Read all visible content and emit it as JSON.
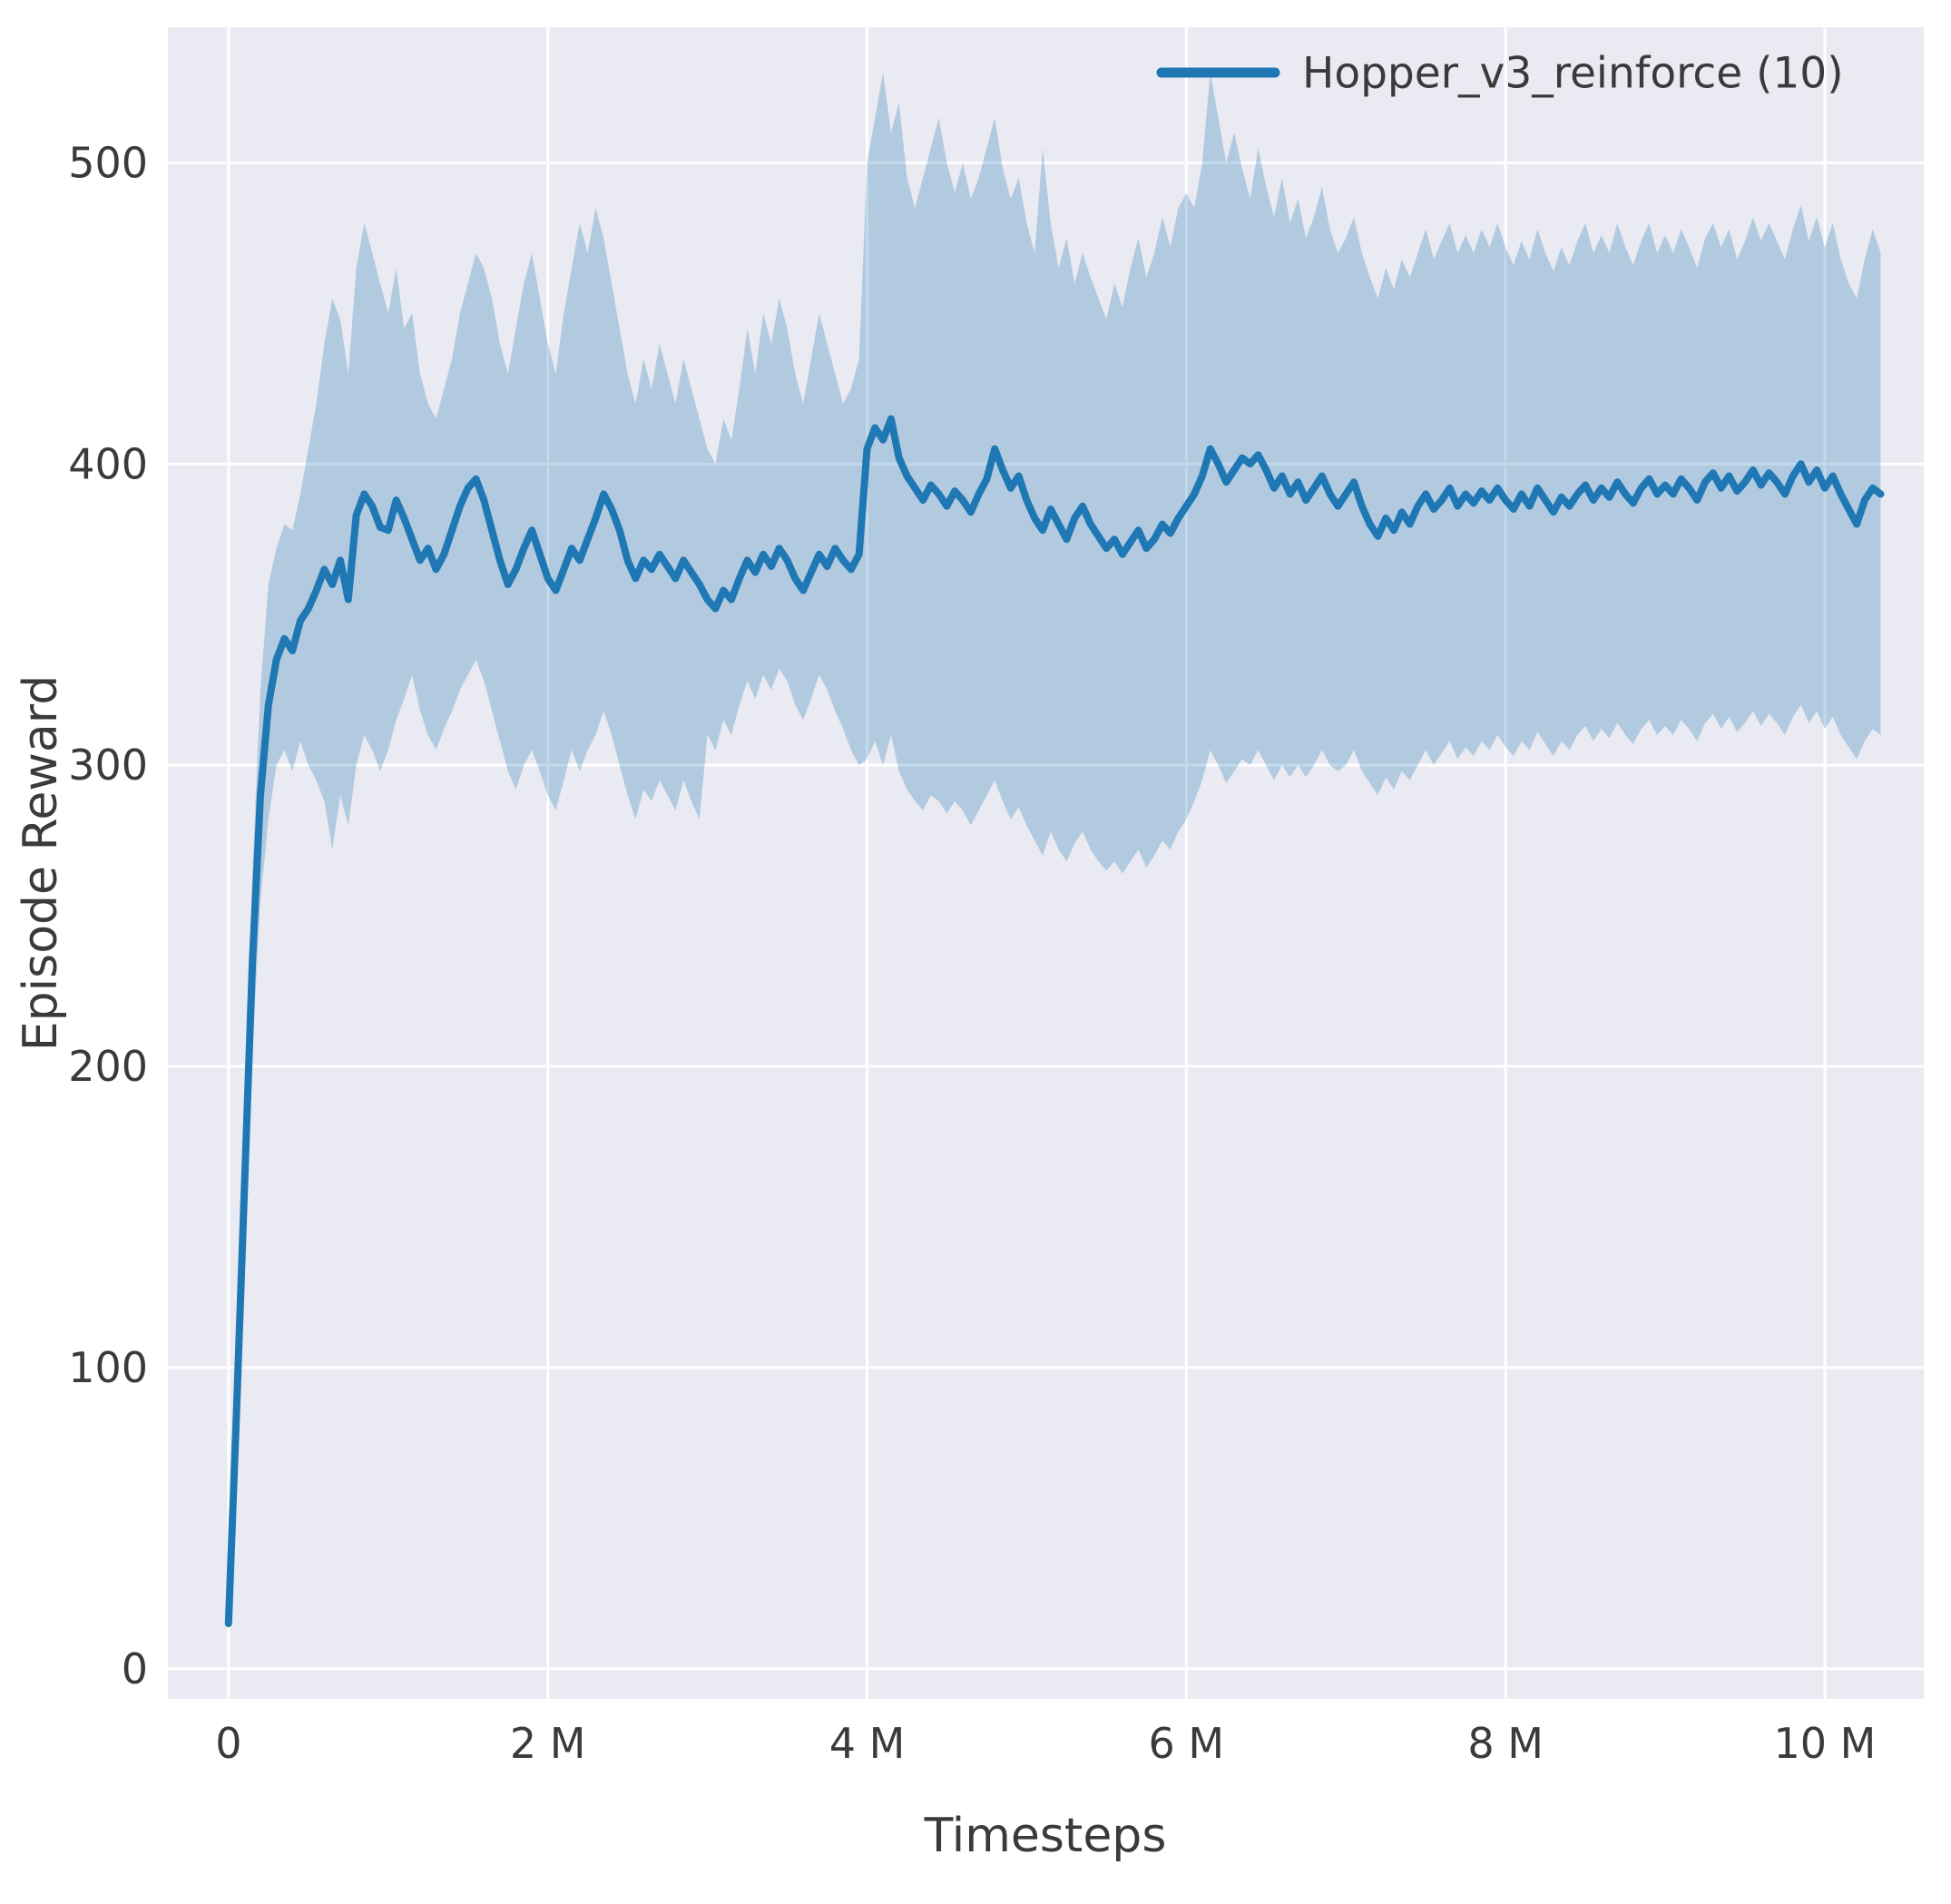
{
  "colors": {
    "line": "#1f77b4",
    "band": "#1f77b4",
    "axes_background": "#eaeaf2",
    "grid": "#ffffff",
    "text": "#3a3a3a",
    "figure_background": "#ffffff"
  },
  "chart_data": {
    "type": "line",
    "title": "",
    "xlabel": "Timesteps",
    "ylabel": "Episode Reward",
    "legend_position": "upper right",
    "grid": true,
    "xlim": [
      -0.38,
      10.62
    ],
    "ylim": [
      -10,
      545
    ],
    "x_unit": "millions",
    "x_start": 0,
    "x_step": 0.05,
    "xticks": {
      "values": [
        0,
        2,
        4,
        6,
        8,
        10
      ],
      "labels": [
        "0",
        "2 M",
        "4 M",
        "6 M",
        "8 M",
        "10 M"
      ]
    },
    "yticks": {
      "values": [
        0,
        100,
        200,
        300,
        400,
        500
      ],
      "labels": [
        "0",
        "100",
        "200",
        "300",
        "400",
        "500"
      ]
    },
    "series": [
      {
        "name": "Hopper_v3_reinforce (10)",
        "values": [
          15,
          85,
          160,
          235,
          290,
          320,
          335,
          342,
          338,
          348,
          352,
          358,
          365,
          360,
          368,
          355,
          383,
          390,
          386,
          379,
          378,
          388,
          382,
          375,
          368,
          372,
          365,
          370,
          378,
          386,
          392,
          395,
          388,
          378,
          368,
          360,
          365,
          372,
          378,
          370,
          362,
          358,
          365,
          372,
          368,
          375,
          382,
          390,
          385,
          378,
          368,
          362,
          368,
          365,
          370,
          366,
          362,
          368,
          364,
          360,
          355,
          352,
          358,
          355,
          362,
          368,
          364,
          370,
          366,
          372,
          368,
          362,
          358,
          364,
          370,
          366,
          372,
          368,
          365,
          370,
          405,
          412,
          408,
          415,
          402,
          396,
          392,
          388,
          393,
          390,
          386,
          391,
          388,
          384,
          390,
          395,
          405,
          398,
          392,
          396,
          388,
          382,
          378,
          385,
          380,
          375,
          382,
          386,
          380,
          376,
          372,
          375,
          370,
          374,
          378,
          372,
          375,
          380,
          377,
          382,
          386,
          390,
          396,
          405,
          400,
          394,
          398,
          402,
          400,
          403,
          398,
          392,
          396,
          390,
          394,
          388,
          392,
          396,
          390,
          386,
          390,
          394,
          386,
          380,
          376,
          382,
          378,
          384,
          380,
          386,
          390,
          385,
          388,
          392,
          386,
          390,
          387,
          391,
          388,
          392,
          388,
          385,
          390,
          386,
          392,
          388,
          384,
          389,
          386,
          390,
          393,
          388,
          392,
          389,
          394,
          390,
          387,
          392,
          395,
          390,
          393,
          390,
          395,
          392,
          388,
          394,
          397,
          392,
          396,
          391,
          394,
          398,
          393,
          397,
          394,
          390,
          396,
          400,
          394,
          398,
          392,
          396,
          390,
          385,
          380,
          388,
          392,
          390
        ]
      }
    ],
    "band": {
      "lower": [
        15,
        70,
        140,
        205,
        255,
        282,
        300,
        305,
        298,
        308,
        300,
        295,
        288,
        272,
        290,
        280,
        300,
        310,
        305,
        298,
        305,
        315,
        322,
        330,
        318,
        310,
        305,
        312,
        318,
        325,
        330,
        335,
        328,
        318,
        308,
        298,
        292,
        300,
        305,
        298,
        290,
        285,
        295,
        305,
        298,
        305,
        310,
        318,
        310,
        300,
        290,
        282,
        292,
        288,
        295,
        290,
        285,
        295,
        288,
        282,
        310,
        305,
        315,
        310,
        320,
        328,
        322,
        330,
        325,
        332,
        328,
        320,
        315,
        322,
        330,
        325,
        318,
        312,
        305,
        300,
        302,
        308,
        300,
        310,
        298,
        292,
        288,
        285,
        290,
        288,
        284,
        288,
        285,
        280,
        285,
        290,
        295,
        288,
        282,
        286,
        280,
        275,
        270,
        278,
        272,
        268,
        274,
        278,
        272,
        268,
        265,
        268,
        264,
        268,
        272,
        266,
        270,
        275,
        272,
        278,
        282,
        288,
        295,
        305,
        300,
        294,
        298,
        302,
        300,
        305,
        300,
        295,
        300,
        296,
        300,
        296,
        300,
        305,
        300,
        298,
        300,
        305,
        298,
        294,
        290,
        296,
        292,
        298,
        295,
        300,
        305,
        300,
        304,
        308,
        302,
        306,
        303,
        308,
        305,
        310,
        306,
        303,
        308,
        305,
        311,
        307,
        303,
        308,
        305,
        310,
        313,
        308,
        312,
        309,
        314,
        310,
        307,
        312,
        315,
        310,
        313,
        310,
        315,
        312,
        308,
        314,
        317,
        312,
        316,
        311,
        314,
        318,
        313,
        317,
        314,
        310,
        316,
        320,
        314,
        318,
        312,
        316,
        310,
        306,
        302,
        308,
        312,
        310
      ],
      "upper": [
        15,
        100,
        180,
        265,
        325,
        360,
        372,
        380,
        378,
        390,
        405,
        420,
        440,
        455,
        448,
        430,
        465,
        480,
        470,
        460,
        450,
        465,
        445,
        450,
        430,
        420,
        415,
        425,
        435,
        450,
        460,
        470,
        465,
        455,
        440,
        430,
        445,
        460,
        470,
        455,
        440,
        430,
        450,
        465,
        480,
        470,
        485,
        475,
        460,
        445,
        430,
        420,
        435,
        425,
        440,
        430,
        420,
        435,
        425,
        415,
        405,
        400,
        415,
        408,
        425,
        445,
        430,
        450,
        440,
        455,
        445,
        430,
        420,
        435,
        450,
        440,
        430,
        420,
        425,
        435,
        500,
        515,
        530,
        510,
        520,
        495,
        485,
        495,
        505,
        515,
        500,
        490,
        500,
        488,
        495,
        505,
        515,
        498,
        488,
        495,
        480,
        470,
        505,
        480,
        465,
        475,
        460,
        470,
        462,
        455,
        448,
        460,
        452,
        465,
        475,
        462,
        470,
        482,
        472,
        485,
        490,
        485,
        500,
        530,
        515,
        500,
        510,
        498,
        488,
        505,
        492,
        482,
        495,
        480,
        488,
        475,
        482,
        492,
        478,
        470,
        475,
        482,
        470,
        462,
        455,
        465,
        458,
        468,
        462,
        470,
        478,
        468,
        474,
        480,
        470,
        476,
        470,
        478,
        472,
        480,
        472,
        466,
        474,
        468,
        478,
        470,
        464,
        472,
        466,
        474,
        480,
        470,
        476,
        470,
        480,
        472,
        466,
        474,
        480,
        470,
        476,
        470,
        478,
        472,
        465,
        475,
        480,
        472,
        478,
        468,
        474,
        482,
        474,
        480,
        474,
        468,
        478,
        486,
        474,
        482,
        472,
        480,
        468,
        460,
        455,
        468,
        478,
        470
      ]
    }
  }
}
